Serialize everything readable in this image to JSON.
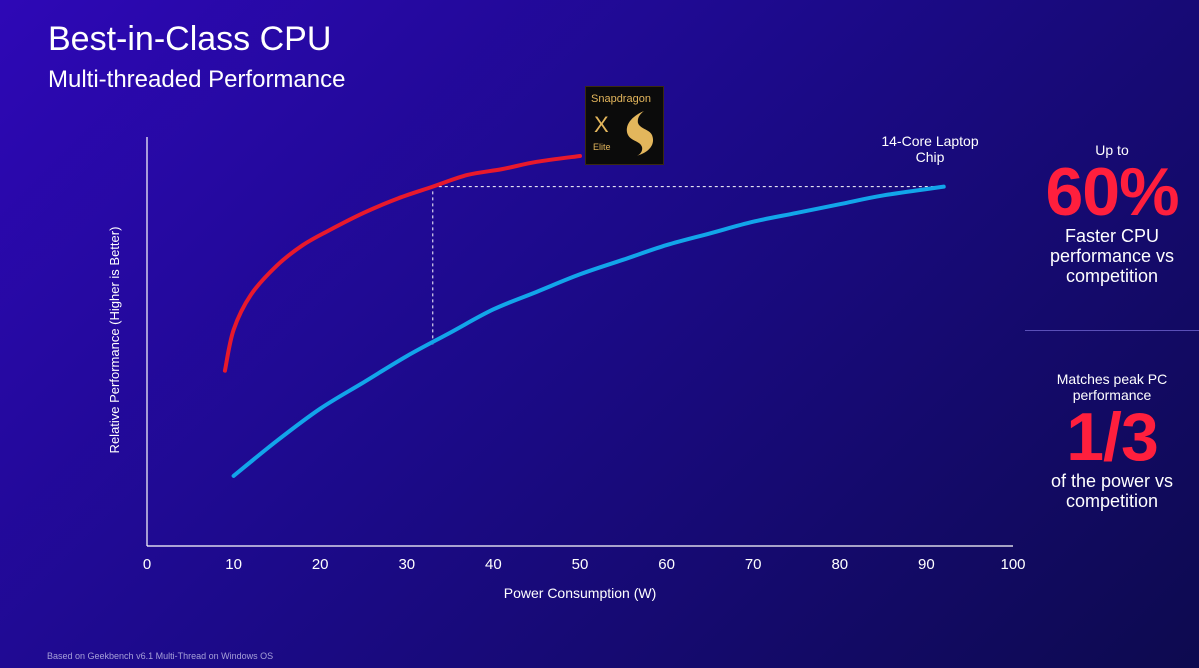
{
  "header": {
    "title": "Best-in-Class CPU",
    "subtitle": "Multi-threaded Performance"
  },
  "logo": {
    "brand": "Snapdragon",
    "model_x": "X",
    "model_elite": "Elite"
  },
  "chart_data": {
    "type": "line",
    "xlabel": "Power Consumption (W)",
    "ylabel": "Relative Performance  (Higher is Better)",
    "xlim": [
      0,
      100
    ],
    "xticks": [
      0,
      10,
      20,
      30,
      40,
      50,
      60,
      70,
      80,
      90,
      100
    ],
    "yticks": [],
    "grid": false,
    "series": [
      {
        "name": "",
        "color": "#e8192c",
        "points": [
          [
            9,
            20
          ],
          [
            10,
            34
          ],
          [
            12,
            46
          ],
          [
            15,
            56
          ],
          [
            18,
            63
          ],
          [
            21,
            68
          ],
          [
            25,
            74
          ],
          [
            29,
            79
          ],
          [
            33,
            83
          ],
          [
            37,
            87
          ],
          [
            41,
            89
          ],
          [
            45,
            91.5
          ],
          [
            50,
            93.5
          ]
        ]
      },
      {
        "name": "14-Core Laptop Chip",
        "color": "#12a5ea",
        "points": [
          [
            10,
            -16
          ],
          [
            15,
            -4
          ],
          [
            20,
            7
          ],
          [
            25,
            16
          ],
          [
            30,
            25
          ],
          [
            35,
            33
          ],
          [
            40,
            41
          ],
          [
            45,
            47
          ],
          [
            50,
            53
          ],
          [
            55,
            58
          ],
          [
            60,
            63
          ],
          [
            65,
            67
          ],
          [
            70,
            71
          ],
          [
            75,
            74
          ],
          [
            80,
            77
          ],
          [
            85,
            80
          ],
          [
            92,
            83
          ]
        ]
      }
    ],
    "annotations": [
      {
        "type": "hline-dashed",
        "x": [
          33,
          92
        ],
        "y": 83
      },
      {
        "type": "vline-dashed",
        "x": 33,
        "y": [
          29,
          83
        ]
      }
    ]
  },
  "callouts": {
    "top": {
      "pre": "Up to",
      "value": "60%",
      "post": "Faster CPU performance vs competition"
    },
    "bottom": {
      "pre": "Matches peak PC performance",
      "value": "1/3",
      "post": "of the power vs competition"
    }
  },
  "footnote": "Based on Geekbench v6.1 Multi-Thread on Windows OS"
}
